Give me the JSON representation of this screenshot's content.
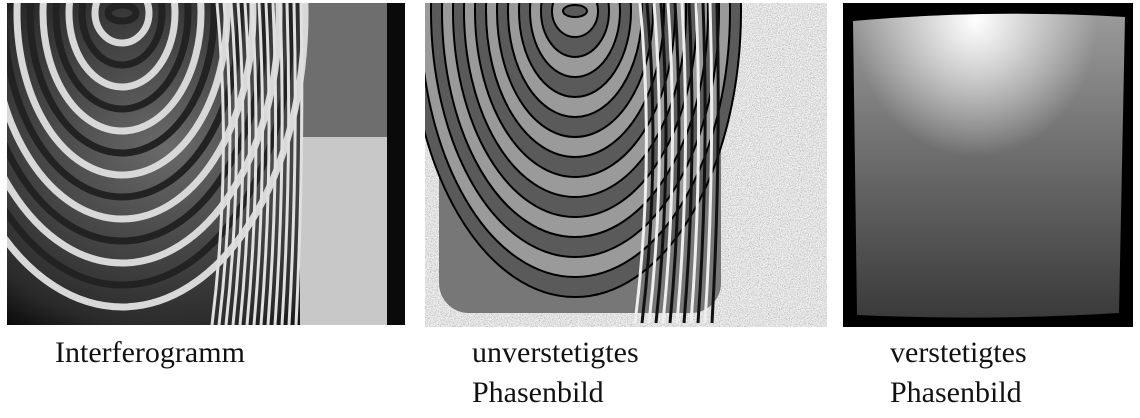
{
  "panels": [
    {
      "caption": [
        "Interferogramm"
      ]
    },
    {
      "caption": [
        "unverstetigtes",
        "Phasenbild"
      ]
    },
    {
      "caption": [
        "verstetigtes",
        "Phasenbild"
      ]
    }
  ]
}
